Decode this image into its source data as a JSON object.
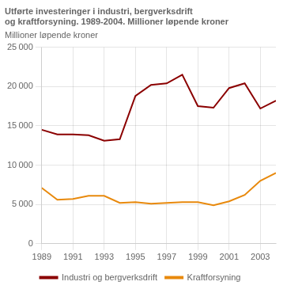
{
  "chart_data": {
    "type": "line",
    "title": [
      "Utførte investeringer i industri, bergverksdrift",
      "og kraftforsyning. 1989-2004. Millioner løpende kroner"
    ],
    "subtitle": "Millioner løpende kroner",
    "x": [
      1989,
      1990,
      1991,
      1992,
      1993,
      1994,
      1995,
      1996,
      1997,
      1998,
      1999,
      2000,
      2001,
      2002,
      2003,
      2004
    ],
    "series": [
      {
        "name": "Industri og bergverksdrift",
        "color": "#8B0000",
        "values": [
          14500,
          13900,
          13900,
          13800,
          13100,
          13300,
          18800,
          20200,
          20400,
          21500,
          17500,
          17300,
          19800,
          20400,
          17200,
          18200
        ]
      },
      {
        "name": "Kraftforsyning",
        "color": "#E8890C",
        "values": [
          7100,
          5600,
          5700,
          6100,
          6100,
          5200,
          5300,
          5100,
          5200,
          5300,
          5300,
          4900,
          5400,
          6200,
          8000,
          9000
        ]
      }
    ],
    "xlim": [
      1989,
      2004
    ],
    "xticks": [
      1989,
      1991,
      1993,
      1995,
      1997,
      1999,
      2001,
      2003
    ],
    "ylim": [
      0,
      25000
    ],
    "yticks": [
      0,
      {
        "value": 5000,
        "label": "5 000"
      },
      {
        "value": 10000,
        "label": "10 000"
      },
      {
        "value": 15000,
        "label": "15 000"
      },
      {
        "value": 20000,
        "label": "20 000"
      },
      {
        "value": 25000,
        "label": "25 000"
      }
    ],
    "grid": true,
    "legend": "bottom"
  }
}
